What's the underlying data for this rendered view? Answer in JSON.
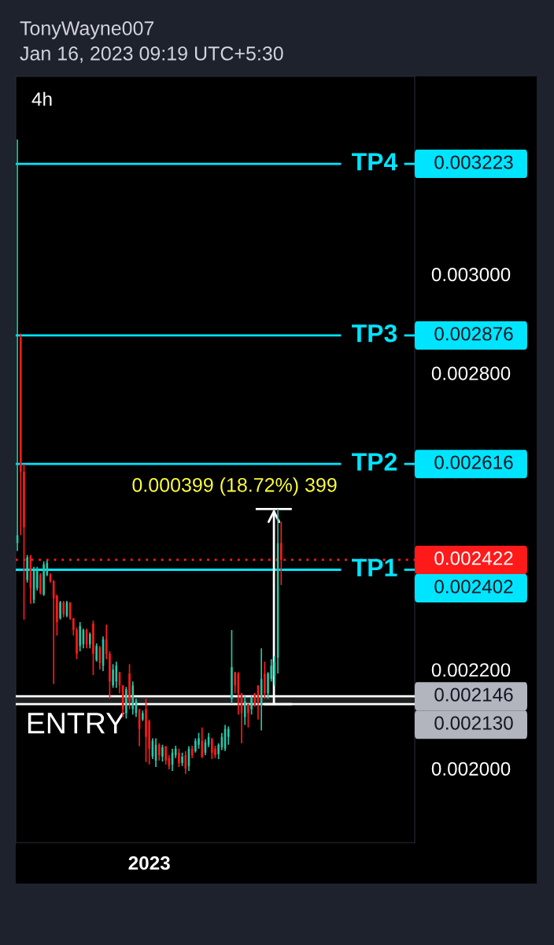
{
  "chart_data": {
    "type": "candlestick",
    "title": "TonyWayne007",
    "subtitle": "Jan 16, 2023 09:19 UTC+5:30",
    "annotations": [
      "4h",
      "0.000399 (18.72%) 399",
      "0.003223",
      "0.002876",
      "0.002616",
      "0.002422",
      "0.002402",
      "0.002146",
      "0.002130"
    ],
    "categories": [
      null,
      null,
      null,
      null,
      null,
      null,
      null,
      null,
      null,
      null,
      null,
      null,
      null,
      null,
      null,
      null,
      null,
      null,
      null,
      null,
      null,
      null,
      null,
      null,
      null,
      null,
      null,
      null,
      null,
      null,
      null,
      null,
      null,
      null,
      null,
      null,
      null,
      null,
      null,
      null,
      "2023",
      null,
      null,
      null,
      null,
      null,
      null,
      null,
      null,
      null,
      null,
      null,
      null,
      null,
      null,
      null,
      null,
      null,
      null,
      null,
      null,
      null,
      null,
      null,
      null,
      null,
      null,
      null,
      null,
      null,
      null,
      null,
      null,
      null,
      null,
      null,
      null,
      null,
      null,
      null,
      null,
      null,
      null,
      null,
      null,
      null,
      null,
      null,
      null,
      null,
      null,
      null,
      null,
      null,
      null,
      null,
      null,
      null,
      null,
      null,
      null,
      null,
      null,
      null,
      null,
      null,
      null,
      null,
      null,
      null,
      null,
      null,
      null,
      null,
      null,
      null,
      null,
      null,
      null,
      null,
      null
    ],
    "ohlc": [
      [
        0.002456,
        0.003272,
        0.00244,
        0.002472
      ],
      [
        0.002872,
        0.00288,
        0.002472,
        0.0026
      ],
      [
        0.0026,
        0.002616,
        0.002301,
        0.002488
      ],
      [
        0.002381,
        0.002432,
        0.002376,
        0.002427
      ],
      [
        0.002429,
        0.002432,
        0.002333,
        0.002365
      ],
      [
        0.002341,
        0.002408,
        0.002334,
        0.002403
      ],
      [
        0.002365,
        0.002408,
        0.00236,
        0.002403
      ],
      [
        0.002392,
        0.002395,
        0.002352,
        0.002355
      ],
      [
        0.002352,
        0.002419,
        0.002349,
        0.002413
      ],
      [
        0.002392,
        0.002421,
        0.002389,
        0.002416
      ],
      [
        0.002392,
        0.002395,
        0.002376,
        0.002379
      ],
      [
        0.002379,
        0.002381,
        0.002171,
        0.002344
      ],
      [
        0.002349,
        0.002352,
        0.002269,
        0.002296
      ],
      [
        0.002304,
        0.002339,
        0.002301,
        0.002336
      ],
      [
        0.002336,
        0.002339,
        0.002306,
        0.002312
      ],
      [
        0.002309,
        0.002339,
        0.002306,
        0.002336
      ],
      [
        0.002336,
        0.002336,
        0.002301,
        0.002304
      ],
      [
        0.002304,
        0.002304,
        0.002269,
        0.00228
      ],
      [
        0.00228,
        0.002285,
        0.002221,
        0.002232
      ],
      [
        0.002248,
        0.002296,
        0.002237,
        0.002288
      ],
      [
        0.002251,
        0.002283,
        0.002243,
        0.00228
      ],
      [
        0.00228,
        0.002283,
        0.002243,
        0.002251
      ],
      [
        0.002251,
        0.002275,
        0.002243,
        0.002272
      ],
      [
        0.002293,
        0.002299,
        0.002189,
        0.002232
      ],
      [
        0.002219,
        0.002253,
        0.002216,
        0.002248
      ],
      [
        0.002245,
        0.002248,
        0.0022,
        0.002213
      ],
      [
        0.002208,
        0.002267,
        0.002197,
        0.002261
      ],
      [
        0.002261,
        0.002291,
        0.002221,
        0.002232
      ],
      [
        0.002232,
        0.002237,
        0.002141,
        0.002176
      ],
      [
        0.002168,
        0.002211,
        0.002163,
        0.0022
      ],
      [
        0.002176,
        0.002216,
        0.002163,
        0.002208
      ],
      [
        0.002195,
        0.002195,
        0.002152,
        0.002168
      ],
      [
        0.002168,
        0.002168,
        0.002104,
        0.00212
      ],
      [
        0.002112,
        0.002165,
        0.002101,
        0.00216
      ],
      [
        0.002192,
        0.002211,
        0.00212,
        0.002136
      ],
      [
        0.00212,
        0.002176,
        0.002109,
        0.002168
      ],
      [
        0.002112,
        0.002141,
        0.002104,
        0.002136
      ],
      [
        0.00212,
        0.00212,
        0.002045,
        0.00208
      ],
      [
        0.002099,
        0.002117,
        0.002096,
        0.002112
      ],
      [
        0.00212,
        0.002141,
        0.002013,
        0.002064
      ],
      [
        0.002096,
        0.002099,
        0.002008,
        0.00204
      ],
      [
        0.002024,
        0.002061,
        0.002019,
        0.002056
      ],
      [
        0.002016,
        0.002061,
        0.002003,
        0.002048
      ],
      [
        0.002048,
        0.002051,
        0.002016,
        0.002027
      ],
      [
        0.002024,
        0.002048,
        0.002014,
        0.002043
      ],
      [
        0.002045,
        0.002045,
        0.002008,
        0.002016
      ],
      [
        0.002021,
        0.002027,
        0.001998,
        0.002005
      ],
      [
        0.002008,
        0.00204,
        0.001995,
        0.002032
      ],
      [
        0.002027,
        0.002046,
        0.002021,
        0.00204
      ],
      [
        0.002032,
        0.00204,
        0.002003,
        0.002011
      ],
      [
        0.002011,
        0.002032,
        0.002005,
        0.002024
      ],
      [
        0.002027,
        0.002035,
        0.001989,
        0.002
      ],
      [
        0.002005,
        0.002045,
        0.001995,
        0.00204
      ],
      [
        0.00204,
        0.002046,
        0.002021,
        0.002027
      ],
      [
        0.002035,
        0.002061,
        0.002032,
        0.002056
      ],
      [
        0.002048,
        0.002072,
        0.00204,
        0.002061
      ],
      [
        0.002056,
        0.002083,
        0.002021,
        0.002024
      ],
      [
        0.002032,
        0.002059,
        0.002027,
        0.002053
      ],
      [
        0.002048,
        0.002072,
        0.002043,
        0.002064
      ],
      [
        0.002059,
        0.002062,
        0.002019,
        0.002032
      ],
      [
        0.00204,
        0.002046,
        0.002021,
        0.002027
      ],
      [
        0.002029,
        0.002051,
        0.002019,
        0.002048
      ],
      [
        0.002043,
        0.002072,
        0.002037,
        0.002064
      ],
      [
        0.00204,
        0.002088,
        0.002035,
        0.00208
      ],
      [
        0.002064,
        0.002085,
        0.002048,
        0.00208
      ],
      [
        0.002141,
        0.00228,
        0.002131,
        0.002205
      ],
      [
        0.002195,
        0.002195,
        0.002152,
        0.002168
      ],
      [
        0.002192,
        0.002195,
        0.002109,
        0.002152
      ],
      [
        0.002152,
        0.002152,
        0.002051,
        0.002112
      ],
      [
        0.002104,
        0.002147,
        0.002088,
        0.002136
      ],
      [
        0.002131,
        0.002131,
        0.002083,
        0.002112
      ],
      [
        0.00212,
        0.002147,
        0.002109,
        0.002144
      ],
      [
        0.002152,
        0.002152,
        0.002125,
        0.002128
      ],
      [
        0.002168,
        0.002168,
        0.002099,
        0.002136
      ],
      [
        0.002128,
        0.002243,
        0.002077,
        0.002181
      ],
      [
        0.002192,
        0.002216,
        0.002141,
        0.002152
      ],
      [
        0.002152,
        0.002195,
        0.002141,
        0.002192
      ],
      [
        0.002181,
        0.002221,
        0.002176,
        0.002208
      ],
      [
        0.002187,
        0.002227,
        0.002168,
        0.002216
      ],
      [
        0.002224,
        0.002525,
        0.002192,
        0.002456
      ],
      [
        0.002456,
        0.002499,
        0.002371,
        0.002422
      ],
      null,
      null,
      null,
      null,
      null,
      null,
      null,
      null,
      null,
      null,
      null,
      null,
      null,
      null,
      null,
      null,
      null,
      null,
      null,
      null,
      null,
      null,
      null,
      null,
      null,
      null,
      null,
      null,
      null,
      null,
      null,
      null,
      null,
      null,
      null,
      null,
      null,
      null,
      null,
      null
    ],
    "colors": [
      "#26c6a6",
      "#ff1a1a",
      "#ff1a1a",
      "#26c6a6",
      "#ff1a1a",
      "#26c6a6",
      "#26c6a6",
      "#ff1a1a",
      "#26c6a6",
      "#26c6a6",
      "#ff1a1a",
      "#ff1a1a",
      "#ff1a1a",
      "#26c6a6",
      "#ff1a1a",
      "#26c6a6",
      "#ff1a1a",
      "#ff1a1a",
      "#ff1a1a",
      "#26c6a6",
      "#26c6a6",
      "#ff1a1a",
      "#26c6a6",
      "#ff1a1a",
      "#26c6a6",
      "#ff1a1a",
      "#26c6a6",
      "#ff1a1a",
      "#ff1a1a",
      "#26c6a6",
      "#26c6a6",
      "#ff1a1a",
      "#ff1a1a",
      "#26c6a6",
      "#ff1a1a",
      "#26c6a6",
      "#26c6a6",
      "#ff1a1a",
      "#26c6a6",
      "#ff1a1a",
      "#ff1a1a",
      "#26c6a6",
      "#26c6a6",
      "#ff1a1a",
      "#26c6a6",
      "#ff1a1a",
      "#ff1a1a",
      "#26c6a6",
      "#26c6a6",
      "#ff1a1a",
      "#26c6a6",
      "#ff1a1a",
      "#26c6a6",
      "#ff1a1a",
      "#26c6a6",
      "#26c6a6",
      "#ff1a1a",
      "#26c6a6",
      "#26c6a6",
      "#ff1a1a",
      "#ff1a1a",
      "#26c6a6",
      "#26c6a6",
      "#26c6a6",
      "#26c6a6",
      "#26c6a6",
      "#ff1a1a",
      "#ff1a1a",
      "#ff1a1a",
      "#26c6a6",
      "#ff1a1a",
      "#26c6a6",
      "#ff1a1a",
      "#ff1a1a",
      "#26c6a6",
      "#ff1a1a",
      "#26c6a6",
      "#26c6a6",
      "#26c6a6",
      "#26c6a6",
      "#ff1a1a",
      null,
      null,
      null,
      null,
      null,
      null,
      null,
      null,
      null,
      null,
      null,
      null,
      null,
      null,
      null,
      null,
      null,
      null,
      null,
      null,
      null,
      null,
      null,
      null,
      null,
      null,
      null,
      null,
      null,
      null,
      null,
      null,
      null,
      null,
      null,
      null,
      null,
      null,
      null,
      null
    ],
    "ylim": [
      0.00185,
      0.0034
    ],
    "yticks": [
      {
        "value": 0.002,
        "label": "0.002000"
      },
      {
        "value": 0.0022,
        "label": "0.002200"
      },
      {
        "value": 0.0028,
        "label": "0.002800"
      },
      {
        "value": 0.003,
        "label": "0.003000"
      }
    ],
    "ref_lines": [
      {
        "axis": "y",
        "value": 0.003223,
        "label": "TP4",
        "color": "#00e5ff"
      },
      {
        "axis": "y",
        "value": 0.002876,
        "label": "TP3",
        "color": "#00e5ff"
      },
      {
        "axis": "y",
        "value": 0.002616,
        "label": "TP2",
        "color": "#00e5ff"
      },
      {
        "axis": "y",
        "value": 0.002422,
        "label": null,
        "color": "#ff1a1a",
        "line_style": "dotted"
      },
      {
        "axis": "y",
        "value": 0.002402,
        "label": "TP1",
        "color": "#00e5ff"
      },
      {
        "axis": "y",
        "value": 0.002146,
        "label": null,
        "color": "#ffffff"
      },
      {
        "axis": "y",
        "value": 0.00213,
        "label": null,
        "color": "#ffffff"
      }
    ],
    "bands": [
      {
        "axis": "y",
        "from": 0.00213,
        "to": 0.002146,
        "label": "ENTRY",
        "color": "#b2b5be"
      }
    ]
  }
}
